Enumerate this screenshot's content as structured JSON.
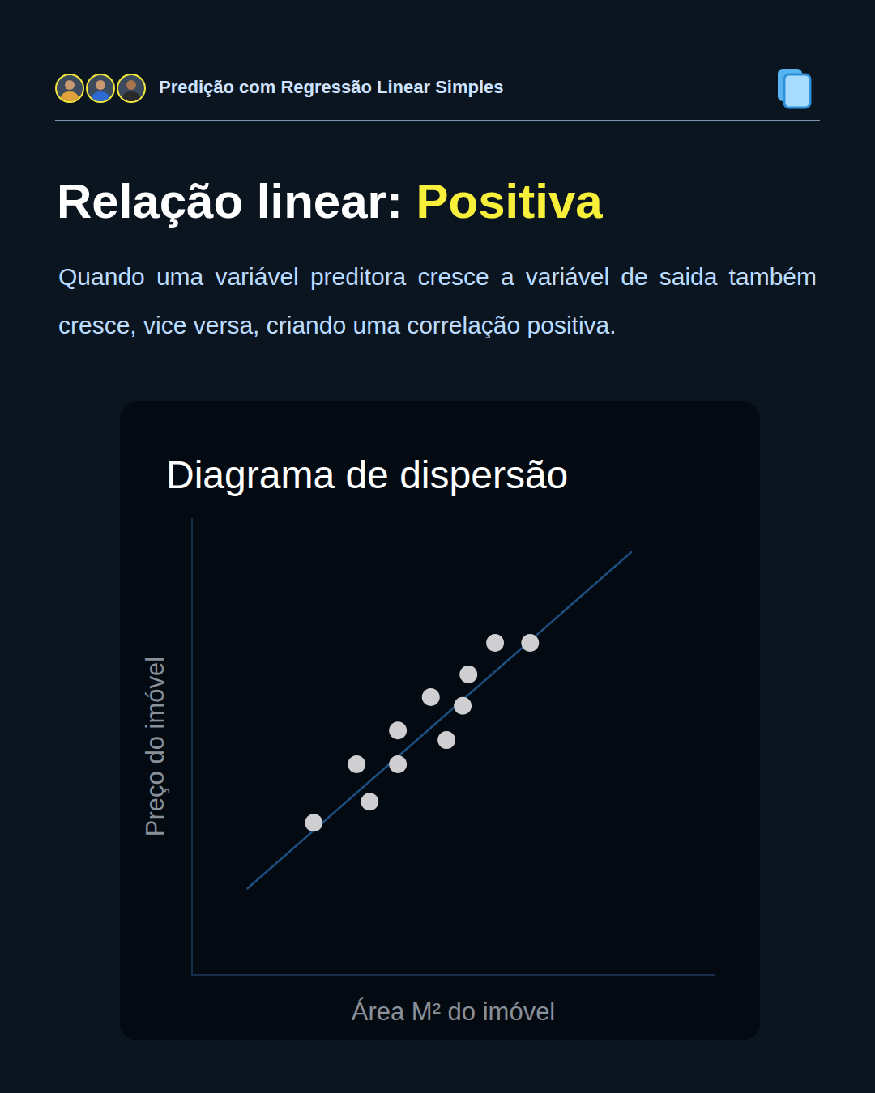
{
  "header": {
    "title": "Predição com Regressão Linear Simples"
  },
  "heading": {
    "title": "Relação linear:",
    "highlight": "Positiva"
  },
  "paragraph": "Quando uma variável preditora cresce a variável de saida também cresce, vice versa, criando uma correlação positiva.",
  "chart_data": {
    "type": "scatter",
    "title": "Diagrama de dispersão",
    "x_label": "Área M² do imóvel",
    "y_label": "Preço do imóvel",
    "xlim": [
      0,
      100
    ],
    "ylim": [
      0,
      100
    ],
    "grid": false,
    "tick_labels": false,
    "series": [
      {
        "type": "scatter",
        "color": "#cfcfd1",
        "marker": "circle",
        "x": [
          23.3,
          31.5,
          34.0,
          39.4,
          39.4,
          45.7,
          48.7,
          51.8,
          52.9,
          58.0,
          64.7
        ],
        "values": [
          33.3,
          46.1,
          37.9,
          53.5,
          46.1,
          60.8,
          51.4,
          58.9,
          65.8,
          72.7,
          72.7
        ]
      },
      {
        "type": "line",
        "color": "#1d4f80",
        "line_style": "solid",
        "x": [
          10.5,
          84.2
        ],
        "values": [
          18.8,
          92.7
        ]
      }
    ]
  }
}
